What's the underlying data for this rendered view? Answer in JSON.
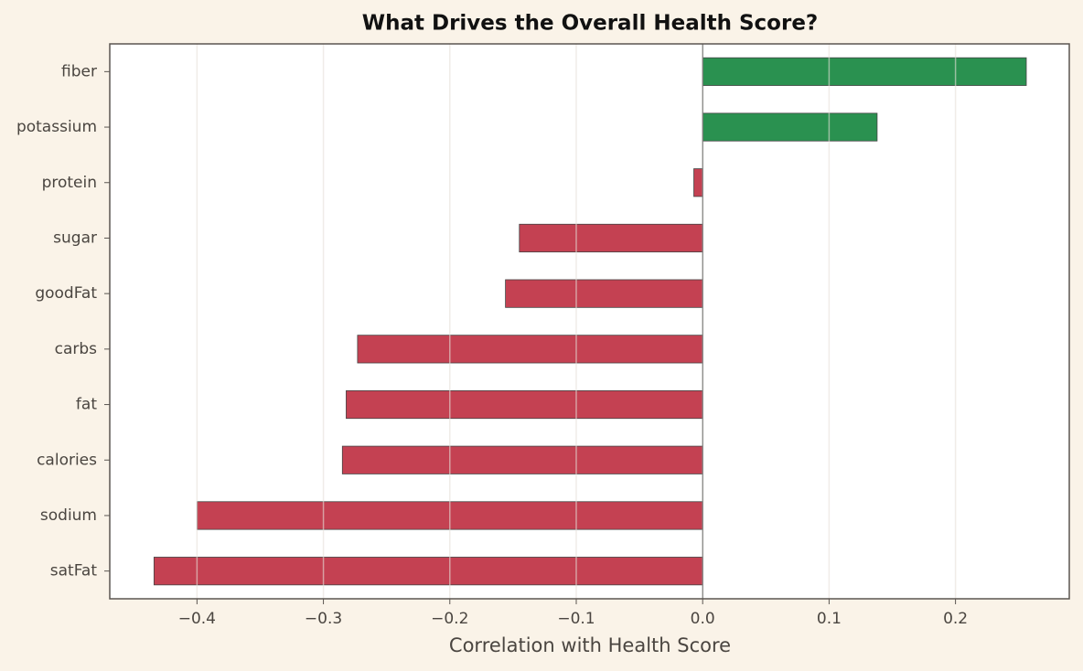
{
  "chart_data": {
    "type": "barh",
    "title": "What Drives the Overall Health Score?",
    "x_label": "Correlation with Health Score",
    "categories": [
      "fiber",
      "potassium",
      "protein",
      "sugar",
      "goodFat",
      "carbs",
      "fat",
      "calories",
      "sodium",
      "satFat"
    ],
    "values": [
      0.256,
      0.138,
      -0.007,
      -0.145,
      -0.156,
      -0.273,
      -0.282,
      -0.285,
      -0.4,
      -0.434
    ],
    "color_positive": "#2a9150",
    "color_negative": "#c44152",
    "xlim": [
      -0.469,
      0.29
    ],
    "xticks": [
      {
        "value": -0.4,
        "label": "−0.4"
      },
      {
        "value": -0.3,
        "label": "−0.3"
      },
      {
        "value": -0.2,
        "label": "−0.2"
      },
      {
        "value": -0.1,
        "label": "−0.1"
      },
      {
        "value": 0,
        "label": "0.0"
      },
      0.1,
      0.2
    ],
    "grid": true
  }
}
